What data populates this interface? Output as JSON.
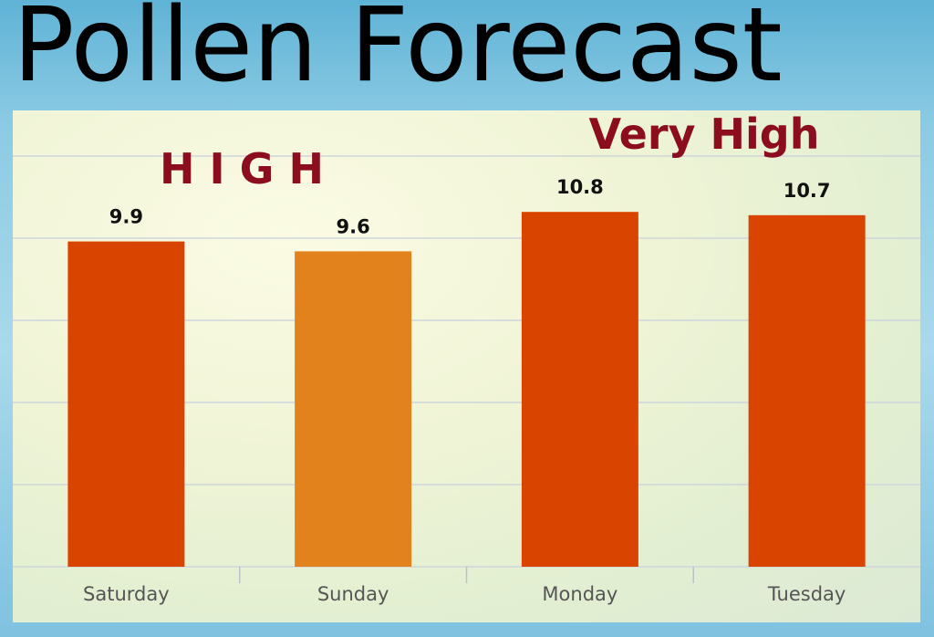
{
  "title": "Pollen Forecast",
  "chart_data": {
    "type": "bar",
    "title": "Pollen Forecast",
    "categories": [
      "Saturday",
      "Sunday",
      "Monday",
      "Tuesday"
    ],
    "values": [
      9.9,
      9.6,
      10.8,
      10.7
    ],
    "data_labels": [
      "9.9",
      "9.6",
      "10.8",
      "10.7"
    ],
    "bar_colors": [
      "#d94400",
      "#e2821d",
      "#d94400",
      "#d94400"
    ],
    "annotations": [
      {
        "text": "H I G H",
        "applies_to": [
          "Saturday",
          "Sunday"
        ],
        "color": "#8b0d1e"
      },
      {
        "text": "Very  High",
        "applies_to": [
          "Monday",
          "Tuesday"
        ],
        "color": "#8b0d1e"
      }
    ],
    "ylim": [
      0,
      12.5
    ],
    "grid": true,
    "xlabel": "",
    "ylabel": ""
  }
}
